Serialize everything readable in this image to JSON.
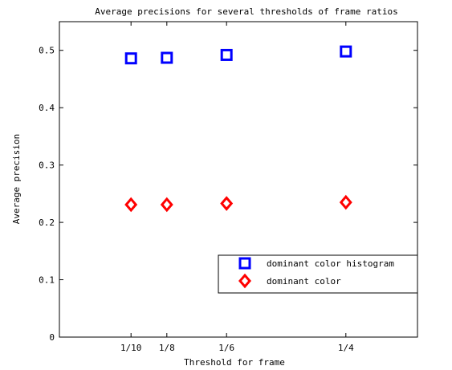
{
  "chart_data": {
    "type": "scatter",
    "title": "Average precisions for several thresholds of frame ratios",
    "xlabel": "Threshold for frame",
    "ylabel": "Average precision",
    "x": [
      0.1,
      0.125,
      0.1667,
      0.25
    ],
    "xtick_labels": [
      "1/10",
      "1/8",
      "1/6",
      "1/4"
    ],
    "xlim": [
      0.05,
      0.3
    ],
    "ylim": [
      0,
      0.55
    ],
    "yticks": [
      0,
      0.1,
      0.2,
      0.3,
      0.4,
      0.5
    ],
    "ytick_labels": [
      "0",
      "0.1",
      "0.2",
      "0.3",
      "0.4",
      "0.5"
    ],
    "grid": false,
    "legend_position": "bottom-right",
    "series": [
      {
        "name": "dominant color histogram",
        "marker": "square",
        "color": "#0000ff",
        "values": [
          0.486,
          0.487,
          0.492,
          0.498
        ]
      },
      {
        "name": "dominant color",
        "marker": "diamond",
        "color": "#ff0000",
        "values": [
          0.231,
          0.231,
          0.233,
          0.235
        ]
      }
    ]
  }
}
